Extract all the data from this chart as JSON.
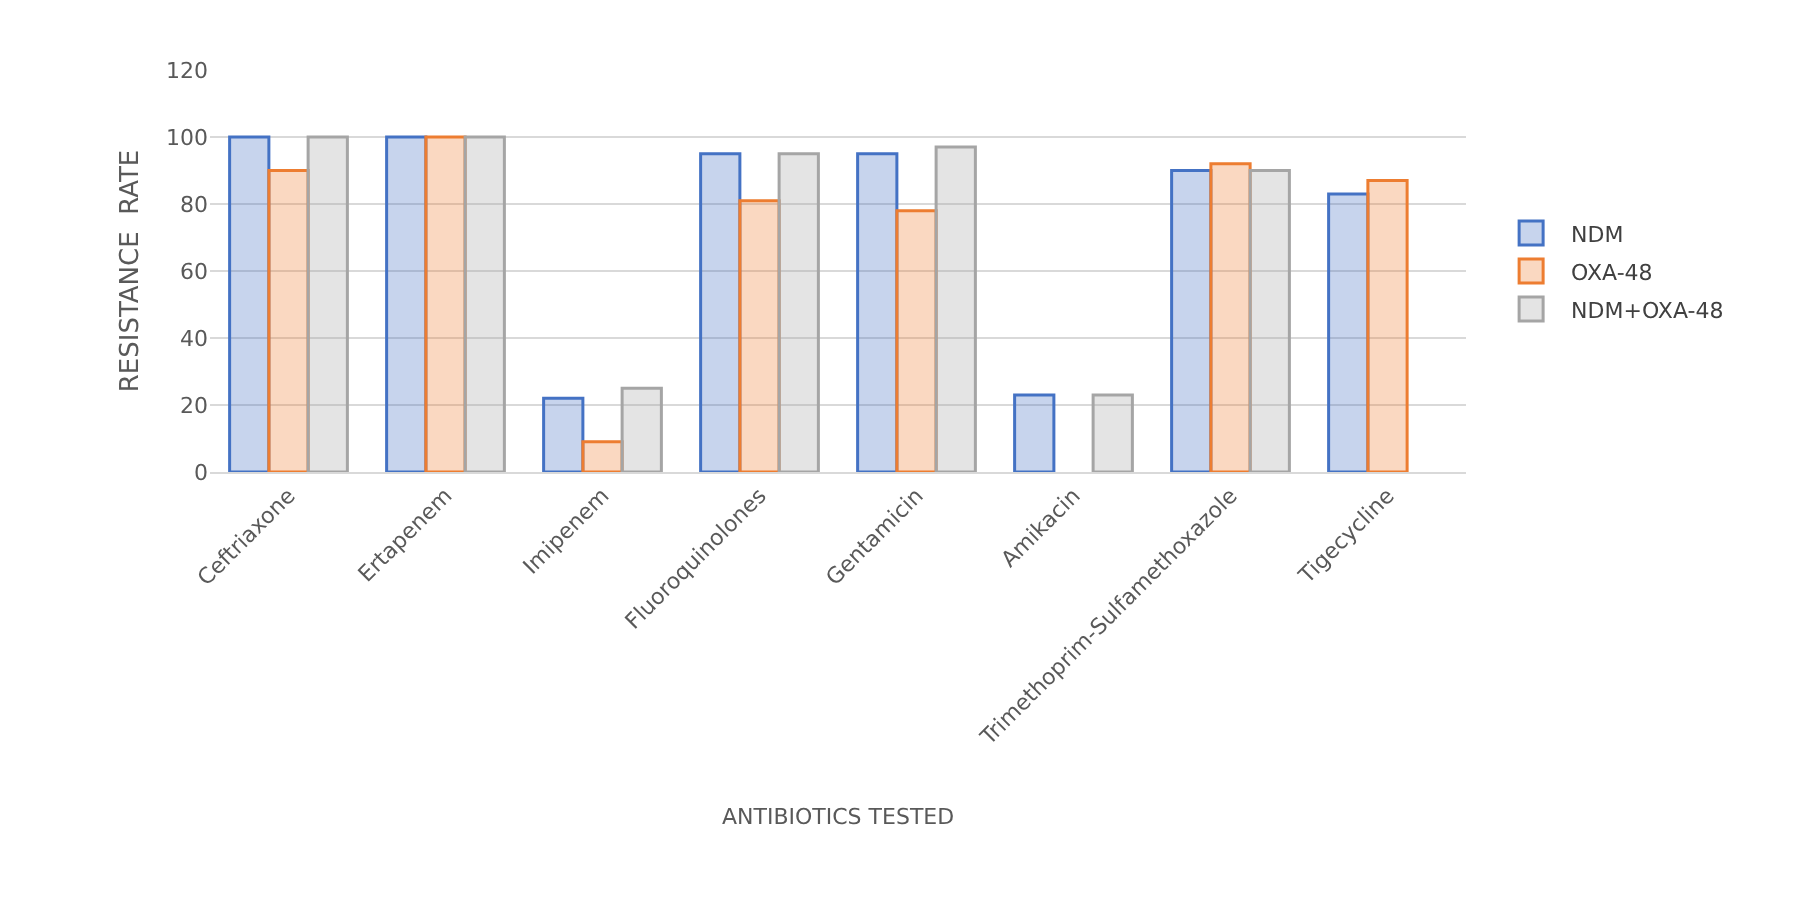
{
  "chart_data": {
    "type": "bar",
    "xlabel": "ANTIBIOTICS TESTED",
    "ylabel": "RESISTANCE  RATE",
    "categories": [
      "Ceftriaxone",
      "Ertapenem",
      "Imipenem",
      "Fluoroquinolones",
      "Gentamicin",
      "Amikacin",
      "Trimethoprim-Sulfamethoxazole",
      "Tigecycline"
    ],
    "series": [
      {
        "name": "NDM",
        "color": "#4472c4",
        "values": [
          100,
          100,
          22,
          95,
          95,
          23,
          90,
          83
        ]
      },
      {
        "name": "OXA-48",
        "color": "#ed7d31",
        "values": [
          90,
          100,
          9,
          81,
          78,
          null,
          92,
          87
        ]
      },
      {
        "name": "NDM+OXA-48",
        "color": "#a5a5a5",
        "values": [
          100,
          100,
          25,
          95,
          97,
          23,
          90,
          null
        ]
      }
    ],
    "ylim": [
      0,
      120
    ],
    "yticks": [
      0,
      20,
      40,
      60,
      80,
      100,
      120
    ],
    "grid": "y",
    "legend": "right"
  }
}
